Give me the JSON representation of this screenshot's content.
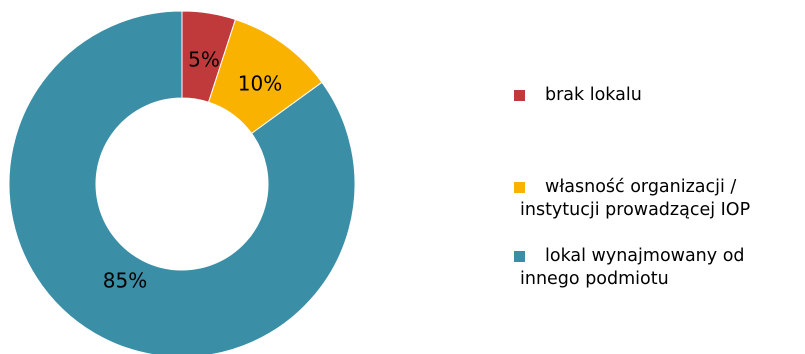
{
  "chart_data": {
    "type": "pie",
    "donut": true,
    "title": "",
    "slices": [
      {
        "label": "brak lokalu",
        "value": 5,
        "display": "5%",
        "color": "#C0393B"
      },
      {
        "label": "własność organizacji / instytucji prowadzącej IOP",
        "value": 10,
        "display": "10%",
        "color": "#F9B200"
      },
      {
        "label": "lokal wynajmowany od innego podmiotu",
        "value": 85,
        "display": "85%",
        "color": "#3A8EA6"
      }
    ],
    "legend_position": "right"
  }
}
